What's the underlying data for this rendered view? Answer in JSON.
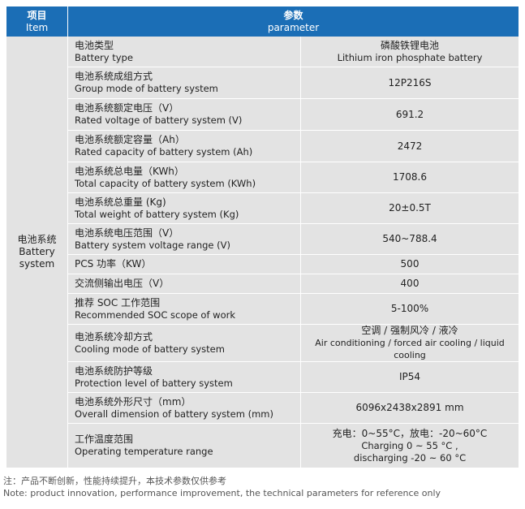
{
  "header": {
    "item_zh": "项目",
    "item_en": "Item",
    "param_zh": "参数",
    "param_en": "parameter"
  },
  "group": {
    "zh": "电池系统",
    "en_line1": "Battery",
    "en_line2": "system"
  },
  "rows": [
    {
      "name_zh": "电池类型",
      "name_en": "Battery type",
      "value": "磷酸铁锂电池",
      "value2": "Lithium iron phosphate battery"
    },
    {
      "name_zh": "电池系统成组方式",
      "name_en": "Group mode of battery system",
      "value": "12P216S"
    },
    {
      "name_zh": "电池系统额定电压（V）",
      "name_en": "Rated voltage of battery system (V)",
      "value": "691.2"
    },
    {
      "name_zh": "电池系统额定容量（Ah）",
      "name_en": "Rated capacity of battery system (Ah)",
      "value": "2472"
    },
    {
      "name_zh": "电池系统总电量（KWh）",
      "name_en": "Total capacity of battery system (KWh)",
      "value": "1708.6"
    },
    {
      "name_zh": "电池系统总重量 (Kg)",
      "name_en": "Total weight of battery system (Kg)",
      "value": "20±0.5T"
    },
    {
      "name_zh": "电池系统电压范围（V）",
      "name_en": "Battery system voltage range (V)",
      "value": "540~788.4"
    },
    {
      "name_zh": "PCS 功率（KW）",
      "value": "500"
    },
    {
      "name_zh": "交流侧输出电压（V）",
      "value": "400"
    },
    {
      "name_zh": "推荐 SOC 工作范围",
      "name_en": "Recommended SOC scope of work",
      "value": "5-100%"
    },
    {
      "name_zh": "电池系统冷却方式",
      "name_en": "Cooling mode of battery system",
      "value": "空调 / 强制风冷 / 液冷",
      "value2": "Air conditioning / forced air cooling / liquid cooling"
    },
    {
      "name_zh": "电池系统防护等级",
      "name_en": "Protection level of battery system",
      "value": "IP54"
    },
    {
      "name_zh": "电池系统外形尺寸（mm）",
      "name_en": "Overall dimension of battery system (mm)",
      "value": "6096x2438x2891 mm"
    },
    {
      "name_zh": "工作温度范围",
      "name_en": "Operating temperature range",
      "value": "充电：0~55°C，放电：-20~60°C",
      "value2": "Charging 0 ~ 55 °C ,",
      "value3": "discharging -20 ~ 60 °C"
    }
  ],
  "note": {
    "zh": "注：产品不断创新，性能持续提升，本技术参数仅供参考",
    "en": "Note: product innovation, performance improvement, the technical parameters for reference only"
  },
  "colors": {
    "header_bg": "#1b6eb6",
    "cell_bg": "#e3e3e3"
  }
}
